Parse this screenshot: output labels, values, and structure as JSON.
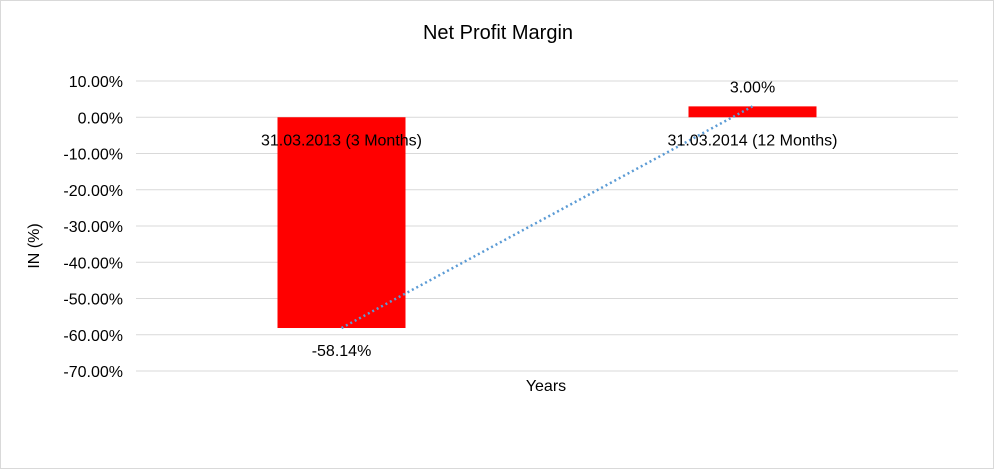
{
  "chart_data": {
    "type": "bar",
    "title": "Net Profit Margin",
    "xlabel": "Years",
    "ylabel": "IN (%)",
    "categories": [
      "31.03.2013 (3  Months)",
      "31.03.2014 (12 Months)"
    ],
    "values": [
      -58.14,
      3.0
    ],
    "data_labels": [
      "-58.14%",
      "3.00%"
    ],
    "ylim": [
      -70,
      10
    ],
    "yticks": [
      10,
      0,
      -10,
      -20,
      -30,
      -40,
      -50,
      -60,
      -70
    ],
    "ytick_labels": [
      "10.00%",
      "0.00%",
      "-10.00%",
      "-20.00%",
      "-30.00%",
      "-40.00%",
      "-50.00%",
      "-60.00%",
      "-70.00%"
    ],
    "grid": true,
    "legend": "none",
    "trendline": "linear",
    "colors": {
      "bar": "#ff0000",
      "trendline": "#5b9bd5",
      "grid": "#d9d9d9"
    }
  }
}
